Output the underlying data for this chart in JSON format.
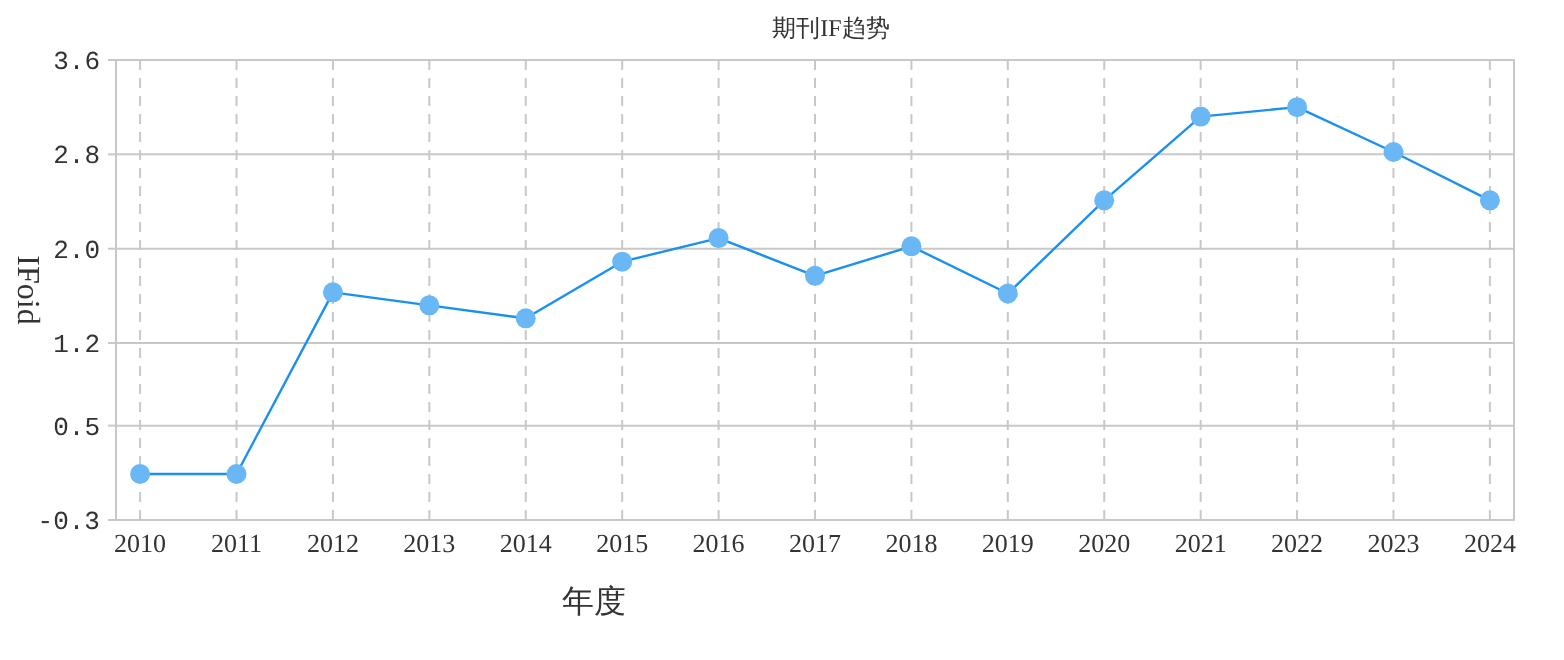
{
  "chart_data": {
    "type": "line",
    "title": "期刊IF趋势",
    "xlabel": "年度",
    "ylabel": "IFoid",
    "categories": [
      "2010",
      "2011",
      "2012",
      "2013",
      "2014",
      "2015",
      "2016",
      "2017",
      "2018",
      "2019",
      "2020",
      "2021",
      "2022",
      "2023",
      "2024"
    ],
    "series": [
      {
        "color": "#1a90f0",
        "values": [
          0.09,
          0.09,
          1.63,
          1.52,
          1.41,
          1.89,
          2.09,
          1.77,
          2.02,
          1.62,
          2.41,
          3.12,
          3.2,
          2.82,
          2.41
        ]
      }
    ],
    "ylim": [
      -0.3,
      3.6
    ],
    "yticks": [
      -0.3,
      0.5,
      1.2,
      {
        "value": 2.0,
        "label": "2.0"
      },
      2.8,
      3.6
    ],
    "grid": true,
    "marker": "circle",
    "line_style": "solid"
  }
}
